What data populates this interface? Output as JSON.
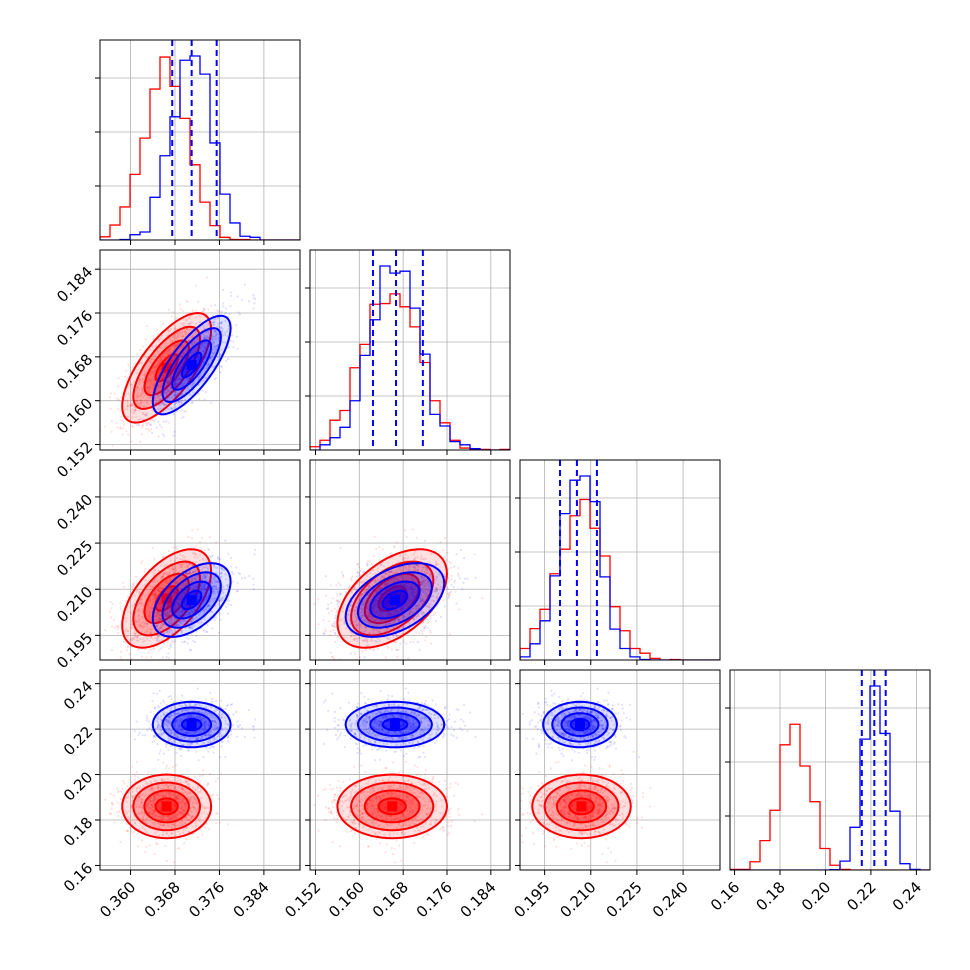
{
  "chart_data": {
    "type": "corner",
    "grid": true,
    "params": [
      {
        "ticks": [
          0.36,
          0.368,
          0.376,
          0.384
        ],
        "tick_labels": [
          "0.360",
          "0.368",
          "0.376",
          "0.384"
        ],
        "range": [
          0.3545,
          0.3905
        ]
      },
      {
        "ticks": [
          0.152,
          0.16,
          0.168,
          0.176,
          0.184
        ],
        "tick_labels": [
          "0.152",
          "0.160",
          "0.168",
          "0.176",
          "0.184"
        ],
        "range": [
          0.151,
          0.1875
        ]
      },
      {
        "ticks": [
          0.195,
          0.21,
          0.225,
          0.24
        ],
        "tick_labels": [
          "0.195",
          "0.210",
          "0.225",
          "0.240"
        ],
        "range": [
          0.187,
          0.252
        ]
      },
      {
        "ticks": [
          0.16,
          0.18,
          0.2,
          0.22,
          0.24
        ],
        "tick_labels": [
          "0.16",
          "0.18",
          "0.20",
          "0.22",
          "0.24"
        ],
        "range": [
          0.158,
          0.246
        ]
      }
    ],
    "series": [
      {
        "color": "#ff0000",
        "mean": [
          0.3665,
          0.166,
          0.207,
          0.186
        ],
        "std": [
          0.004,
          0.005,
          0.008,
          0.007
        ],
        "corr": {
          "0-1": 0.7,
          "0-2": 0.55,
          "1-2": 0.5
        }
      },
      {
        "color": "#0000ff",
        "mean": [
          0.371,
          0.1665,
          0.2065,
          0.222
        ],
        "std": [
          0.0035,
          0.0045,
          0.006,
          0.005
        ],
        "corr": {
          "0-1": 0.75,
          "0-2": 0.5,
          "1-2": 0.45
        }
      }
    ],
    "quantile_lines": {
      "color": "#0000ff",
      "style": "dashed",
      "values": [
        [
          0.3675,
          0.371,
          0.3755
        ],
        [
          0.1625,
          0.1667,
          0.1716
        ],
        [
          0.2,
          0.2055,
          0.212
        ],
        [
          0.216,
          0.2215,
          0.2265
        ]
      ]
    }
  }
}
